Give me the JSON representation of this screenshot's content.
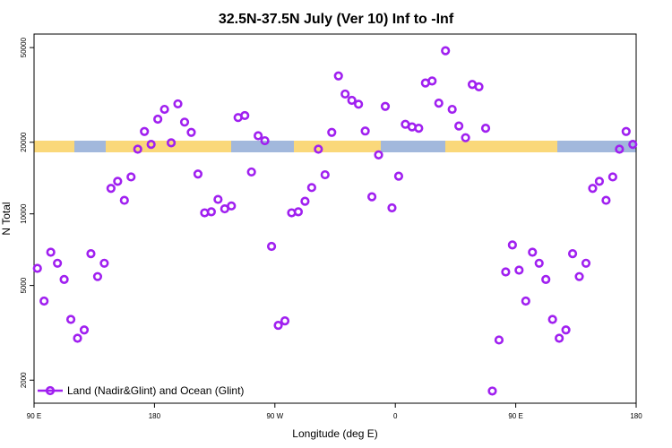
{
  "chart_data": {
    "type": "scatter",
    "title": "32.5N-37.5N July (Ver 10)   Inf to -Inf",
    "xlabel": "Longitude (deg E)",
    "ylabel": "N Total",
    "x_ticks": [
      {
        "value": 90,
        "label": "90 E"
      },
      {
        "value": 180,
        "label": "180"
      },
      {
        "value": 270,
        "label": "90 W"
      },
      {
        "value": 360,
        "label": "0"
      },
      {
        "value": 450,
        "label": "90 E"
      },
      {
        "value": 540,
        "label": "180"
      }
    ],
    "y_ticks": [
      {
        "value": 2000,
        "label": "2000"
      },
      {
        "value": 5000,
        "label": "5000"
      },
      {
        "value": 10000,
        "label": "10000"
      },
      {
        "value": 20000,
        "label": "20000"
      },
      {
        "value": 50000,
        "label": "50000"
      }
    ],
    "xlim": [
      90,
      540
    ],
    "ylim": [
      1600,
      57000
    ],
    "y_scale": "log",
    "grid": false,
    "legend_position": "bottom-left",
    "series": [
      {
        "name": "Land (Nadir&Glint) and Ocean (Glint)",
        "color": "#a020f0",
        "marker": "open-circle",
        "points": [
          [
            92.5,
            5900
          ],
          [
            97.5,
            4300
          ],
          [
            102.5,
            6900
          ],
          [
            107.5,
            6200
          ],
          [
            112.5,
            5300
          ],
          [
            117.5,
            3600
          ],
          [
            122.5,
            3000
          ],
          [
            127.5,
            3250
          ],
          [
            132.5,
            6800
          ],
          [
            137.5,
            5450
          ],
          [
            142.5,
            6200
          ],
          [
            147.5,
            12800
          ],
          [
            152.5,
            13700
          ],
          [
            157.5,
            11400
          ],
          [
            162.5,
            14300
          ],
          [
            167.5,
            18700
          ],
          [
            172.5,
            22200
          ],
          [
            177.5,
            19600
          ],
          [
            182.5,
            25000
          ],
          [
            187.5,
            27500
          ],
          [
            192.5,
            19900
          ],
          [
            197.5,
            29000
          ],
          [
            202.5,
            24300
          ],
          [
            207.5,
            22000
          ],
          [
            212.5,
            14700
          ],
          [
            217.5,
            10100
          ],
          [
            222.5,
            10200
          ],
          [
            227.5,
            11500
          ],
          [
            232.5,
            10500
          ],
          [
            237.5,
            10800
          ],
          [
            242.5,
            25400
          ],
          [
            247.5,
            25900
          ],
          [
            252.5,
            15000
          ],
          [
            257.5,
            21300
          ],
          [
            262.5,
            20300
          ],
          [
            267.5,
            7300
          ],
          [
            272.5,
            3400
          ],
          [
            277.5,
            3550
          ],
          [
            282.5,
            10100
          ],
          [
            287.5,
            10200
          ],
          [
            292.5,
            11300
          ],
          [
            297.5,
            12900
          ],
          [
            302.5,
            18700
          ],
          [
            307.5,
            14600
          ],
          [
            312.5,
            22000
          ],
          [
            317.5,
            38000
          ],
          [
            322.5,
            31900
          ],
          [
            327.5,
            30000
          ],
          [
            332.5,
            28900
          ],
          [
            337.5,
            22300
          ],
          [
            342.5,
            11800
          ],
          [
            347.5,
            17700
          ],
          [
            352.5,
            28300
          ],
          [
            357.5,
            10600
          ],
          [
            362.5,
            14400
          ],
          [
            367.5,
            23800
          ],
          [
            372.5,
            23200
          ],
          [
            377.5,
            22900
          ],
          [
            382.5,
            35500
          ],
          [
            387.5,
            36200
          ],
          [
            392.5,
            29200
          ],
          [
            397.5,
            48500
          ],
          [
            402.5,
            27500
          ],
          [
            407.5,
            23400
          ],
          [
            412.5,
            20900
          ],
          [
            417.5,
            35000
          ],
          [
            422.5,
            34200
          ],
          [
            427.5,
            22900
          ],
          [
            432.5,
            1800
          ],
          [
            437.5,
            2950
          ],
          [
            442.5,
            5700
          ],
          [
            447.5,
            7400
          ],
          [
            452.5,
            5800
          ],
          [
            457.5,
            4300
          ],
          [
            462.5,
            6900
          ],
          [
            467.5,
            6200
          ],
          [
            472.5,
            5300
          ],
          [
            477.5,
            3600
          ],
          [
            482.5,
            3000
          ],
          [
            487.5,
            3250
          ],
          [
            492.5,
            6800
          ],
          [
            497.5,
            5450
          ],
          [
            502.5,
            6200
          ],
          [
            507.5,
            12800
          ],
          [
            512.5,
            13700
          ],
          [
            517.5,
            11400
          ],
          [
            522.5,
            14300
          ],
          [
            527.5,
            18700
          ],
          [
            532.5,
            22200
          ],
          [
            537.5,
            19600
          ]
        ]
      }
    ],
    "map_strip_colors": {
      "land": "#fad87a",
      "ocean": "#a2b8dc"
    }
  }
}
